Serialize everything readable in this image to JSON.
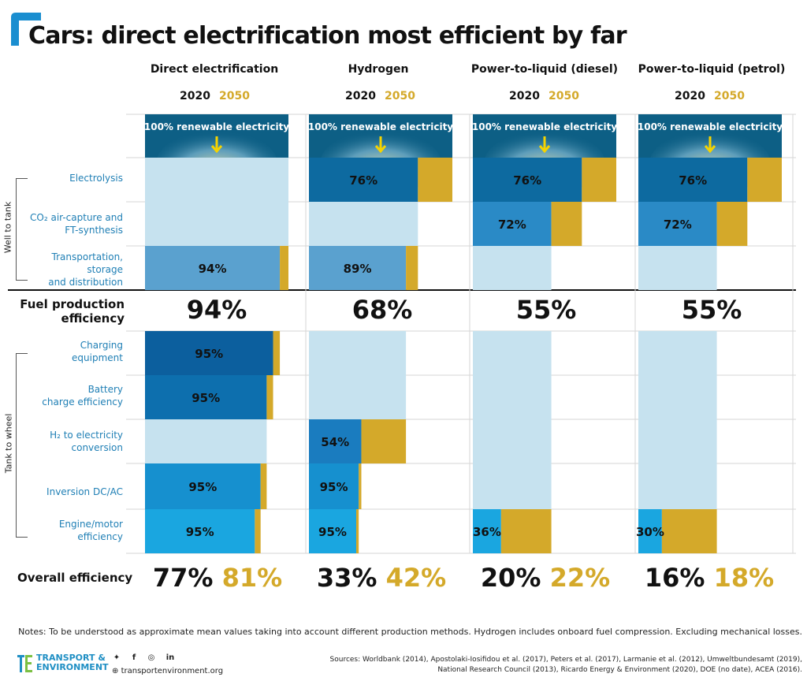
{
  "title": "Cars: direct electrification most efficient by far",
  "year_labels": {
    "y2020": "2020",
    "y2050": "2050"
  },
  "colors": {
    "accent_blue": "#1a8ed0",
    "gold": "#d4a92a",
    "light_blue": "#c6e2ef",
    "dark_teal": "#0d5f85"
  },
  "row_labels": {
    "electrolysis": "Electrolysis",
    "co2_line1": "CO₂ air-capture and",
    "co2_line2": "FT-synthesis",
    "transport_line1": "Transportation,",
    "transport_line2": "storage",
    "transport_line3": "and distribution",
    "charging_line1": "Charging",
    "charging_line2": "equipment",
    "battery_line1": "Battery",
    "battery_line2": "charge efficiency",
    "h2_line1": "H₂ to electricity",
    "h2_line2": "conversion",
    "inversion": "Inversion DC/AC",
    "engine_line1": "Engine/motor",
    "engine_line2": "efficiency"
  },
  "group_labels": {
    "well_to_tank": "Well to tank",
    "tank_to_wheel": "Tank to wheel"
  },
  "fuel_label_line1": "Fuel production",
  "fuel_label_line2": "efficiency",
  "overall_label": "Overall efficiency",
  "notes": "Notes: To be understood as approximate mean values taking into account different production methods. Hydrogen includes onboard fuel compression. Excluding mechanical losses.",
  "sources_line1": "Sources: Worldbank (2014), Apostolaki-Iosifidou et al. (2017), Peters et al. (2017), Larmanie et al. (2012), Umweltbundesamt (2019),",
  "sources_line2": "National Research Council (2013), Ricardo Energy & Environment (2020), DOE (no date), ACEA (2016).",
  "brand_line1": "TRANSPORT &",
  "brand_line2": "ENVIRONMENT",
  "website": "transportenvironment.org",
  "chart_data": {
    "type": "bar",
    "title": "Cars: direct electrification most efficient by far",
    "source_label": "100% renewable electricity",
    "stages": [
      "Electrolysis",
      "CO₂ air-capture and FT-synthesis",
      "Transportation, storage and distribution",
      "Charging equipment",
      "Battery charge efficiency",
      "H₂ to electricity conversion",
      "Inversion DC/AC",
      "Engine/motor efficiency"
    ],
    "pathways": [
      {
        "name": "Direct electrification",
        "steps": {
          "transport": 0.94,
          "charging": 0.95,
          "battery": 0.95,
          "inversion": 0.95,
          "engine": 0.95
        },
        "labels": {
          "transport": "94%",
          "charging": "95%",
          "battery": "95%",
          "inversion": "95%",
          "engine": "95%"
        },
        "fuel_production": "94%",
        "overall_2020": "77%",
        "overall_2050": "81%"
      },
      {
        "name": "Hydrogen",
        "steps": {
          "electrolysis": 0.76,
          "transport": 0.89,
          "h2": 0.54,
          "inversion": 0.95,
          "engine": 0.95
        },
        "labels": {
          "electrolysis": "76%",
          "transport": "89%",
          "h2": "54%",
          "inversion": "95%",
          "engine": "95%"
        },
        "fuel_production": "68%",
        "overall_2020": "33%",
        "overall_2050": "42%"
      },
      {
        "name": "Power-to-liquid (diesel)",
        "steps": {
          "electrolysis": 0.76,
          "co2": 0.72,
          "engine": 0.36
        },
        "labels": {
          "electrolysis": "76%",
          "co2": "72%",
          "engine": "36%"
        },
        "fuel_production": "55%",
        "overall_2020": "20%",
        "overall_2050": "22%"
      },
      {
        "name": "Power-to-liquid (petrol)",
        "steps": {
          "electrolysis": 0.76,
          "co2": 0.72,
          "engine": 0.3
        },
        "labels": {
          "electrolysis": "76%",
          "co2": "72%",
          "engine": "30%"
        },
        "fuel_production": "55%",
        "overall_2020": "16%",
        "overall_2050": "18%"
      }
    ]
  }
}
